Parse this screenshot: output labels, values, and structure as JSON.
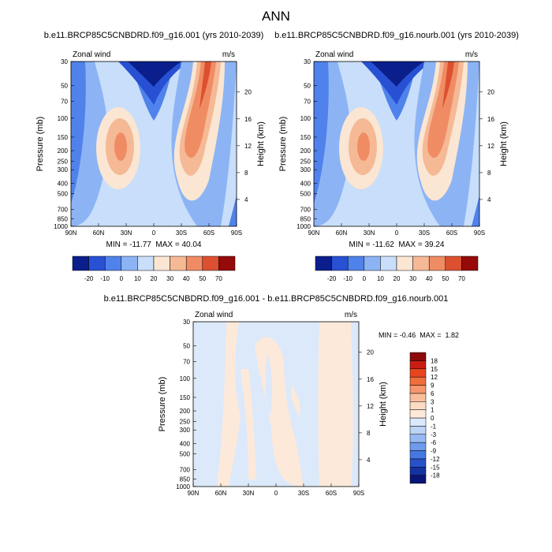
{
  "title": "ANN",
  "panels": [
    {
      "title": "b.e11.BRCP85C5CNBDRD.f09_g16.001 (yrs 2010-2039)",
      "left_label": "Zonal wind",
      "right_label": "m/s",
      "y_label": "Pressure (mb)",
      "y2_label": "Height (km)",
      "x_labels": [
        "90N",
        "60N",
        "30N",
        "0",
        "30S",
        "60S",
        "90S"
      ],
      "yticks": [
        30,
        50,
        70,
        100,
        150,
        200,
        250,
        300,
        400,
        500,
        700,
        850,
        1000
      ],
      "ylim": [
        30,
        1000
      ],
      "y2ticks": [
        4,
        8,
        12,
        16,
        20
      ],
      "minmax": "MIN = -11.77  MAX = 40.04",
      "colorbar": {
        "levels": [
          -20,
          -10,
          0,
          10,
          20,
          30,
          40,
          50,
          70
        ],
        "colors": [
          "#0a1e8c",
          "#2850d2",
          "#5082eb",
          "#8cb4f5",
          "#c8defa",
          "#fae6d2",
          "#f5b996",
          "#f08c64",
          "#dc5030",
          "#960a0a"
        ]
      }
    },
    {
      "title": "b.e11.BRCP85C5CNBDRD.f09_g16.nourb.001 (yrs 2010-2039)",
      "left_label": "Zonal wind",
      "right_label": "m/s",
      "y_label": "Pressure (mb)",
      "y2_label": "Height (km)",
      "x_labels": [
        "90N",
        "60N",
        "30N",
        "0",
        "30S",
        "60S",
        "90S"
      ],
      "yticks": [
        30,
        50,
        70,
        100,
        150,
        200,
        250,
        300,
        400,
        500,
        700,
        850,
        1000
      ],
      "ylim": [
        30,
        1000
      ],
      "y2ticks": [
        4,
        8,
        12,
        16,
        20
      ],
      "minmax": "MIN = -11.62  MAX = 39.24",
      "colorbar": {
        "levels": [
          -20,
          -10,
          0,
          10,
          20,
          30,
          40,
          50,
          70
        ],
        "colors": [
          "#0a1e8c",
          "#2850d2",
          "#5082eb",
          "#8cb4f5",
          "#c8defa",
          "#fae6d2",
          "#f5b996",
          "#f08c64",
          "#dc5030",
          "#960a0a"
        ]
      }
    },
    {
      "title": "b.e11.BRCP85C5CNBDRD.f09_g16.001 - b.e11.BRCP85C5CNBDRD.f09_g16.nourb.001",
      "left_label": "Zonal wind",
      "right_label": "m/s",
      "y_label": "Pressure (mb)",
      "y2_label": "Height (km)",
      "x_labels": [
        "90N",
        "60N",
        "30N",
        "0",
        "30S",
        "60S",
        "90S"
      ],
      "yticks": [
        30,
        50,
        70,
        100,
        150,
        200,
        250,
        300,
        400,
        500,
        700,
        850,
        1000
      ],
      "ylim": [
        30,
        1000
      ],
      "y2ticks": [
        4,
        8,
        12,
        16,
        20
      ],
      "minmax": "MIN = -0.46  MAX =  1.82",
      "colorbar": {
        "levels": [
          -18,
          -15,
          -12,
          -9,
          -6,
          -3,
          -1,
          0,
          1,
          3,
          6,
          9,
          12,
          15,
          18
        ],
        "colors": [
          "#0a1478",
          "#1432a0",
          "#2850c8",
          "#4678e1",
          "#6e9aeb",
          "#96b9f0",
          "#bcd3f5",
          "#dce9fa",
          "#fde9da",
          "#fbdcc3",
          "#f8be9b",
          "#f5966e",
          "#f06e3c",
          "#e6461e",
          "#c81e14",
          "#8c0a0a"
        ]
      }
    }
  ]
}
